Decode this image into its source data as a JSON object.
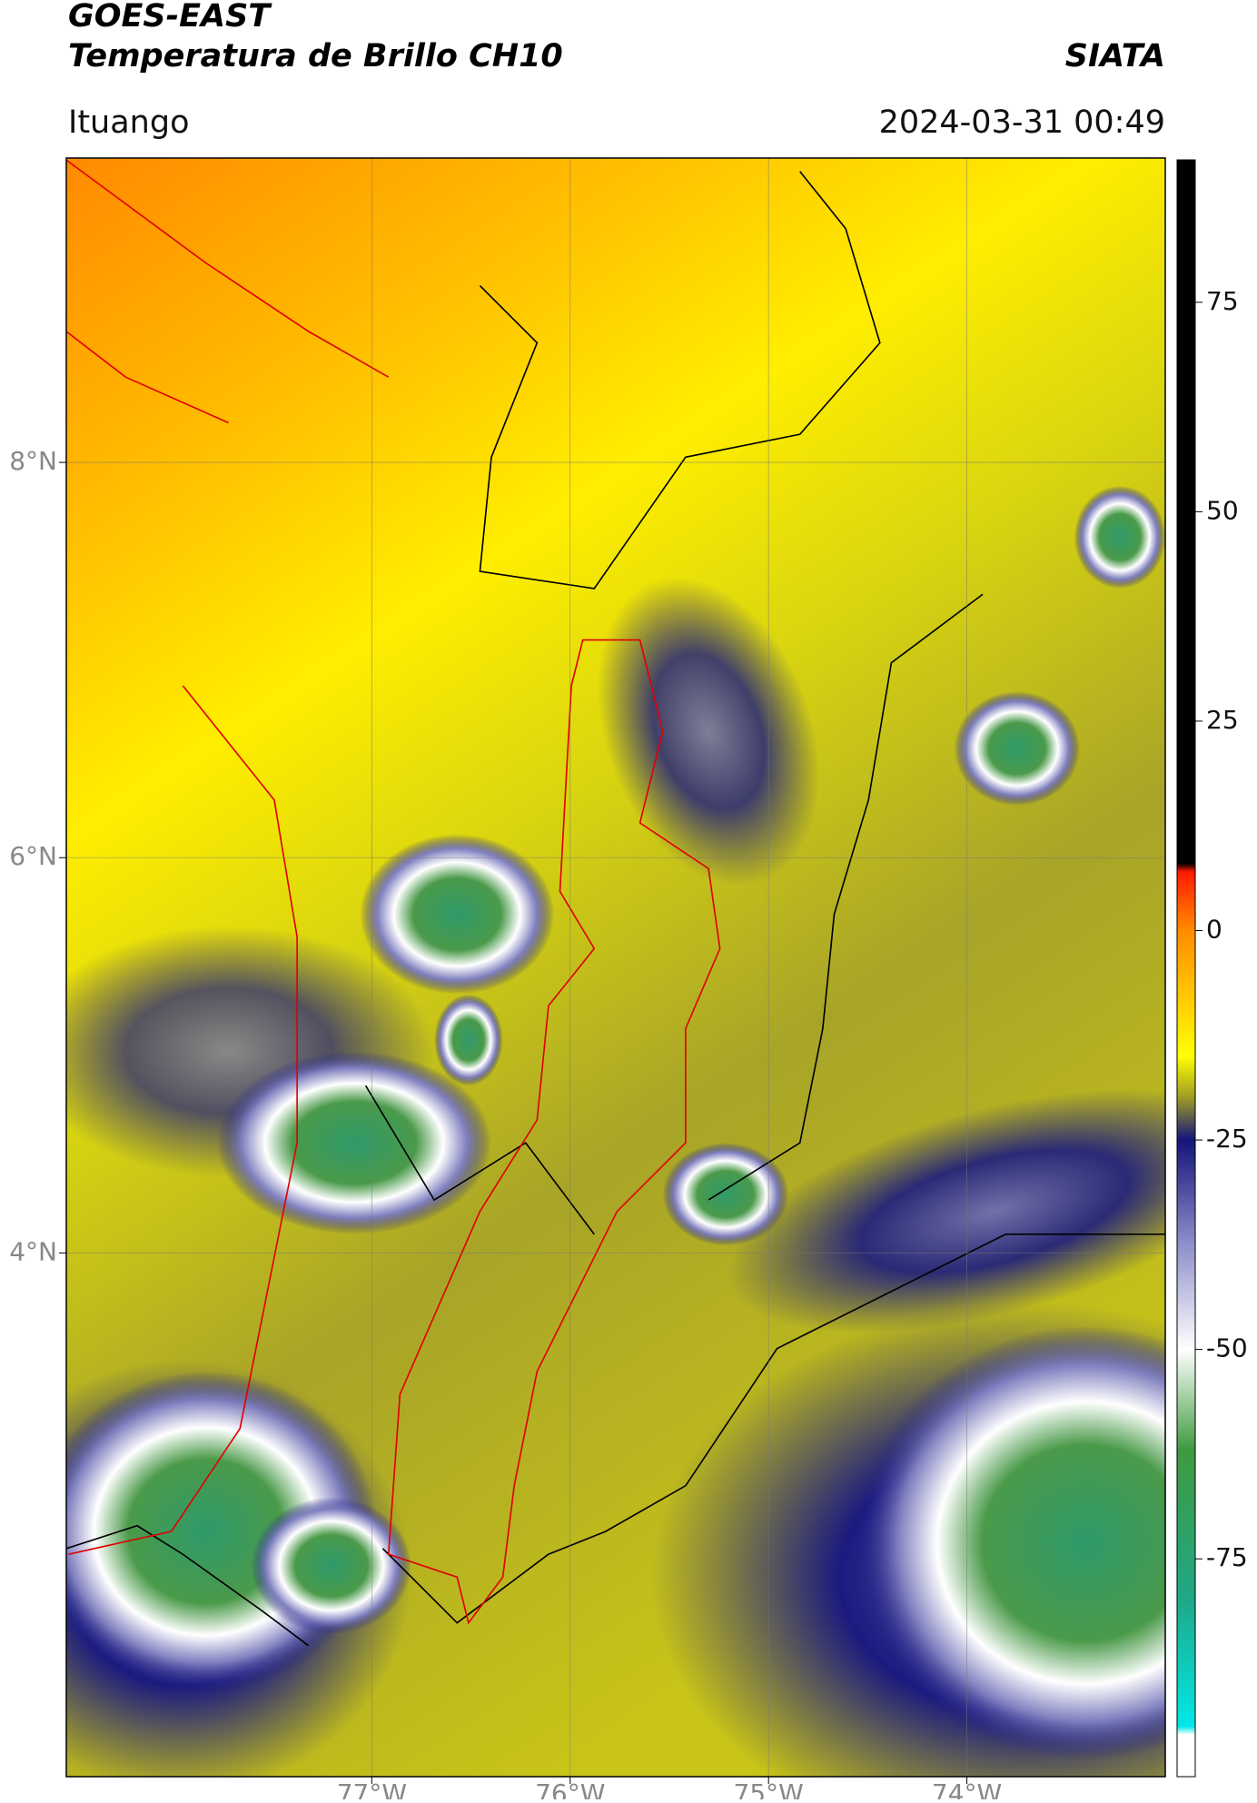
{
  "header": {
    "title": "GOES-EAST",
    "subtitle": "Temperatura de Brillo CH10",
    "source": "SIATA",
    "location": "Ituango",
    "datetime": "2024-03-31 00:49"
  },
  "map": {
    "xlim": [
      -78.54,
      -73.0
    ],
    "ylim": [
      1.35,
      9.54
    ],
    "xticks": [
      {
        "value": -77,
        "label": "77°W"
      },
      {
        "value": -76,
        "label": "76°W"
      },
      {
        "value": -75,
        "label": "75°W"
      },
      {
        "value": -74,
        "label": "74°W"
      }
    ],
    "yticks": [
      {
        "value": 8,
        "label": "8°N"
      },
      {
        "value": 6,
        "label": "6°N"
      },
      {
        "value": 4,
        "label": "4°N"
      }
    ],
    "grid": true
  },
  "colorbar": {
    "lim": [
      -101,
      92
    ],
    "ticks": [
      75,
      50,
      25,
      0,
      -25,
      -50,
      -75
    ],
    "stops": [
      {
        "value": 92,
        "color": "#000000"
      },
      {
        "value": 8,
        "color": "#000000"
      },
      {
        "value": 7,
        "color": "#ff1a00"
      },
      {
        "value": 0,
        "color": "#ff8c00"
      },
      {
        "value": -15,
        "color": "#ffff00"
      },
      {
        "value": -20,
        "color": "#9c9a26"
      },
      {
        "value": -25,
        "color": "#14147a"
      },
      {
        "value": -37,
        "color": "#8a8ac8"
      },
      {
        "value": -50,
        "color": "#ffffff"
      },
      {
        "value": -62,
        "color": "#3f9a3f"
      },
      {
        "value": -80,
        "color": "#1fa888"
      },
      {
        "value": -95,
        "color": "#00e8e8"
      },
      {
        "value": -96,
        "color": "#ffffff"
      },
      {
        "value": -101,
        "color": "#ffffff"
      }
    ]
  }
}
